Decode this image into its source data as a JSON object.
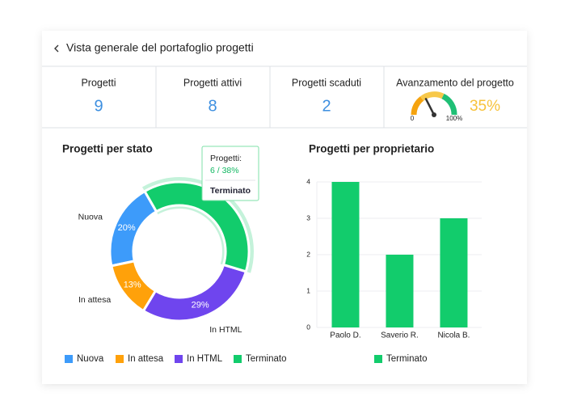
{
  "header": {
    "title": "Vista generale del portafoglio progetti"
  },
  "kpis": [
    {
      "label": "Progetti",
      "value": "9"
    },
    {
      "label": "Progetti attivi",
      "value": "8"
    },
    {
      "label": "Progetti scaduti",
      "value": "2"
    }
  ],
  "gauge": {
    "label": "Avanzamento del progetto",
    "min": 0,
    "max": {
      "value": 100,
      "label": "100%"
    },
    "value": 35,
    "value_label": "35%"
  },
  "chart_data": [
    {
      "type": "pie",
      "title": "Progetti per stato",
      "categories": [
        "Nuova",
        "In attesa",
        "In HTML",
        "Terminato"
      ],
      "values": [
        20,
        13,
        29,
        38
      ],
      "value_labels": [
        "20%",
        "13%",
        "29%",
        "38%"
      ],
      "colors": [
        "#3d9bfa",
        "#ffa10a",
        "#6f45ee",
        "#12cc6c"
      ],
      "tooltip": {
        "title": "Progetti:",
        "value": "6 / 38%",
        "category": "Terminato"
      }
    },
    {
      "type": "bar",
      "title": "Progetti per proprietario",
      "categories": [
        "Paolo D.",
        "Saverio R.",
        "Nicola B."
      ],
      "series": [
        {
          "name": "Terminato",
          "color": "#12cc6c",
          "values": [
            4,
            2,
            3
          ]
        }
      ],
      "ylim": [
        0,
        4
      ],
      "yticks": [
        0,
        1,
        2,
        3,
        4
      ],
      "grid": true
    }
  ]
}
